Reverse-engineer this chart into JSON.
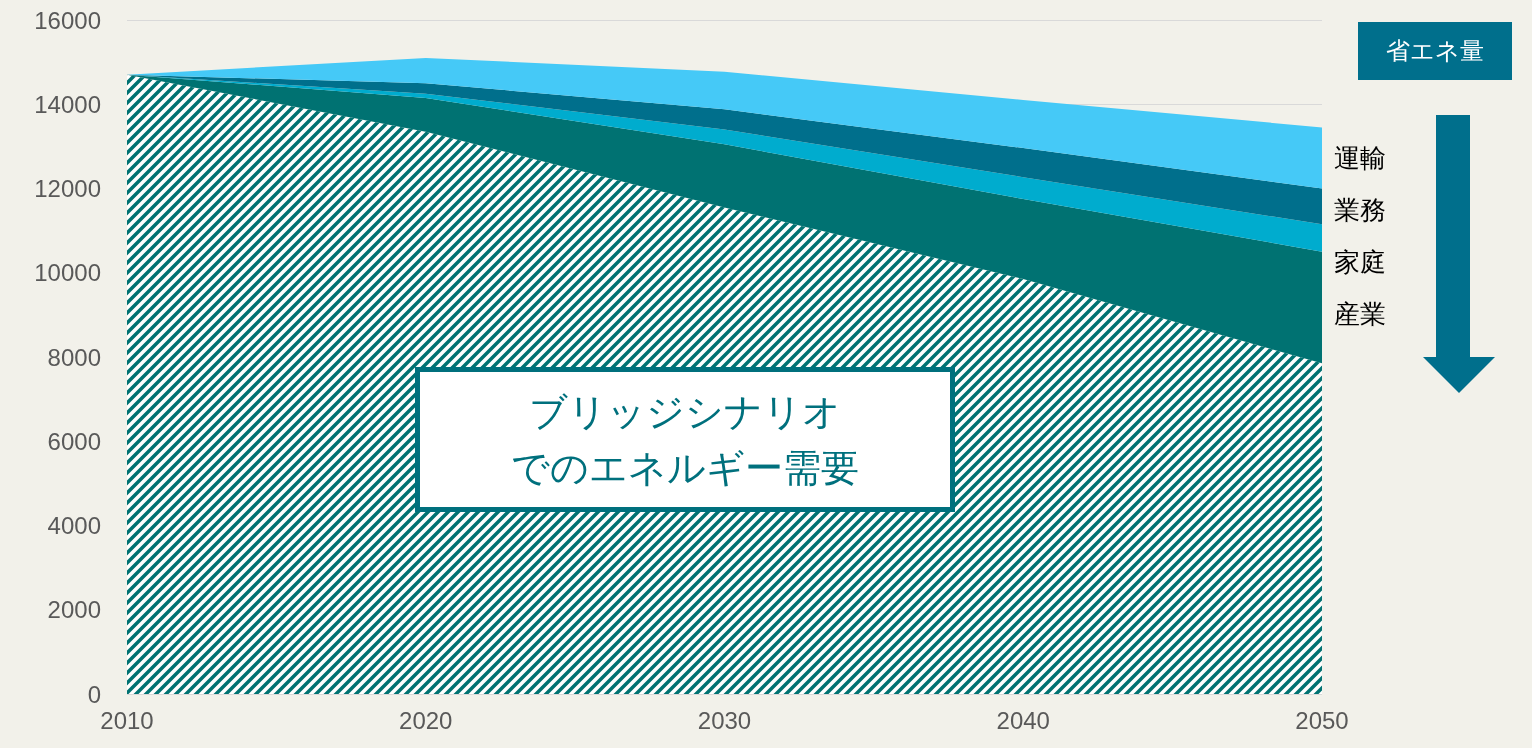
{
  "chart_data": {
    "type": "area",
    "stacked": true,
    "categories": [
      "2010",
      "2020",
      "2030",
      "2040",
      "2050"
    ],
    "ylim": [
      0,
      16000
    ],
    "yticks": [
      0,
      2000,
      4000,
      6000,
      8000,
      10000,
      12000,
      14000,
      16000
    ],
    "grid": "y",
    "legend": false,
    "legend_title": "省エネ量",
    "series": [
      {
        "name": "ブリッジシナリオでのエネルギー需要",
        "color": "#007272",
        "values": [
          14700,
          13350,
          11550,
          9850,
          7850
        ]
      },
      {
        "name": "産業",
        "color": "#007272",
        "values": [
          0,
          800,
          1500,
          1900,
          2650
        ]
      },
      {
        "name": "家庭",
        "color": "#00acce",
        "values": [
          0,
          100,
          350,
          520,
          650
        ]
      },
      {
        "name": "業務",
        "color": "#006f8c",
        "values": [
          0,
          250,
          480,
          690,
          850
        ]
      },
      {
        "name": "運輸",
        "color": "#45c9f7",
        "values": [
          0,
          600,
          890,
          1140,
          1450
        ]
      }
    ]
  }
}
